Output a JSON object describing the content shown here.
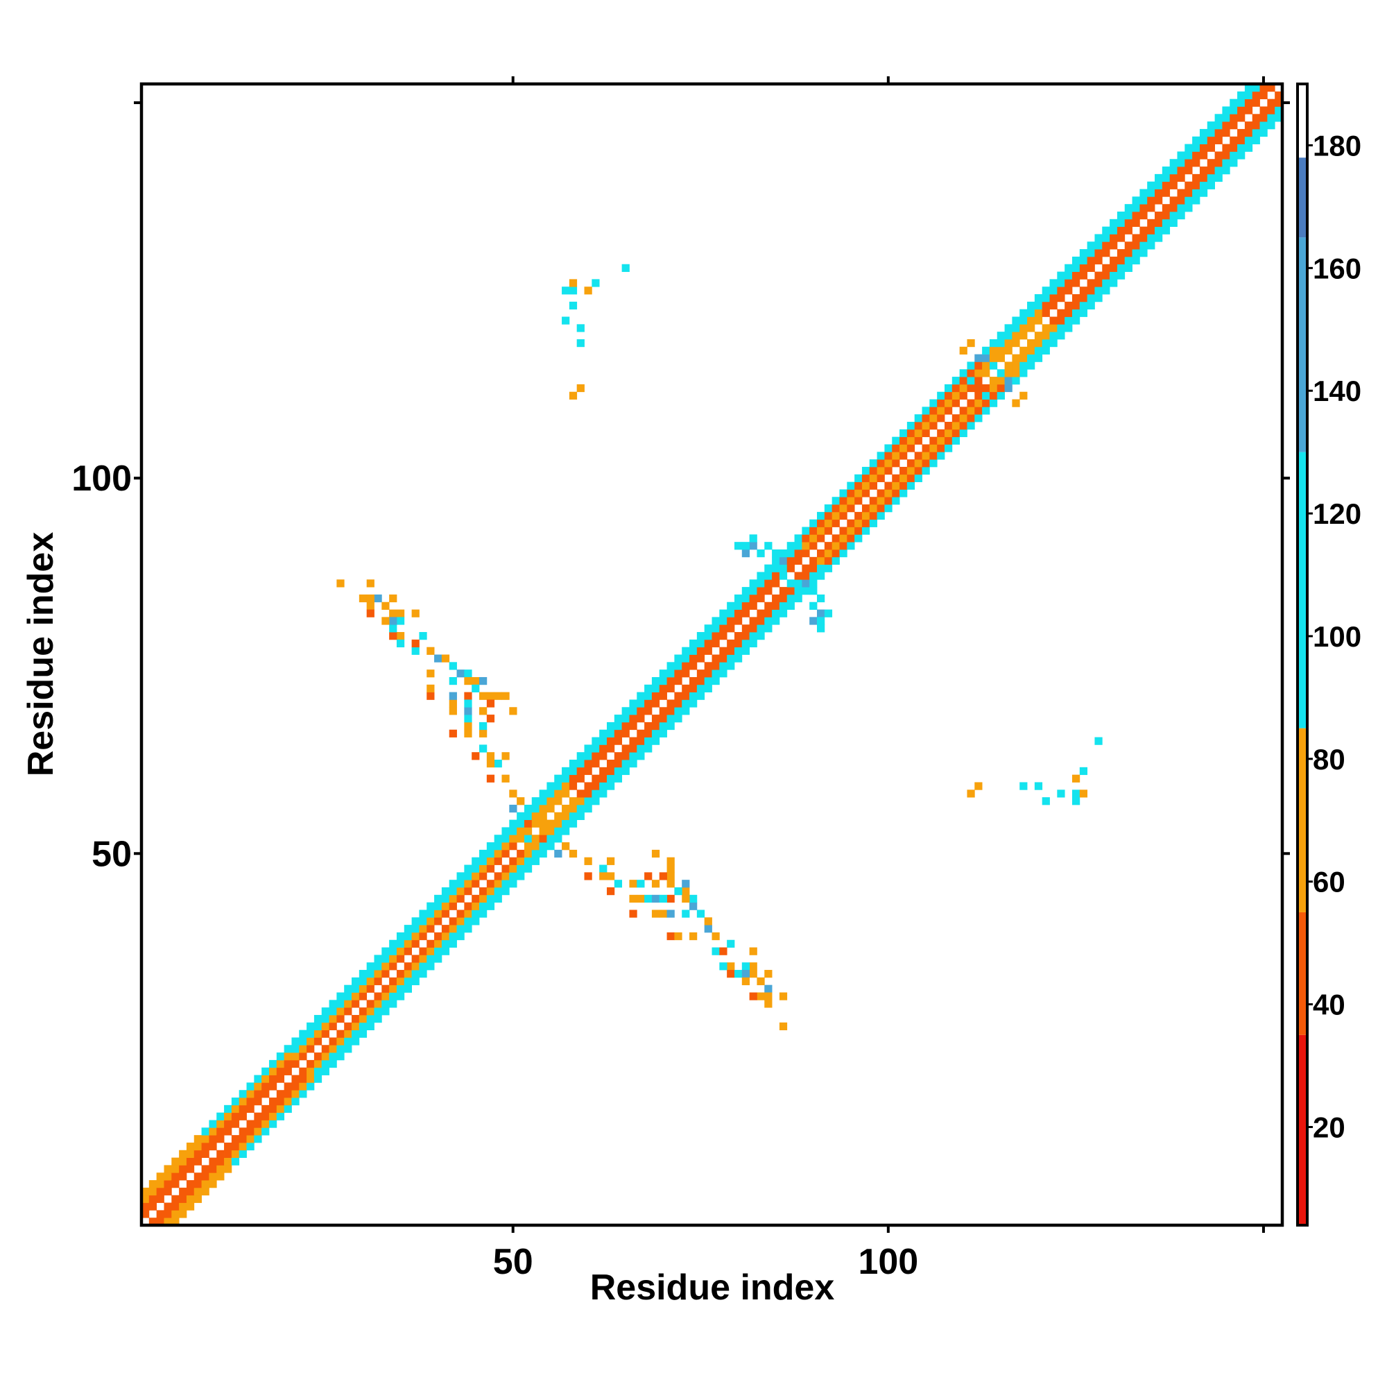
{
  "chart_data": {
    "type": "heatmap",
    "title": "",
    "xlabel": "Residue index",
    "ylabel": "Residue index",
    "xlim": [
      0.5,
      152.5
    ],
    "ylim": [
      0.5,
      152.5
    ],
    "x_ticks": [
      50,
      100,
      150
    ],
    "x_tick_labels": [
      "50",
      "100",
      ""
    ],
    "y_ticks": [
      50,
      100,
      150
    ],
    "y_tick_labels": [
      "50",
      "100",
      ""
    ],
    "grid": false,
    "colorbar": {
      "range": [
        4,
        190
      ],
      "ticks": [
        20,
        40,
        60,
        80,
        100,
        120,
        140,
        160,
        180
      ],
      "tick_labels": [
        "20",
        "40",
        "60",
        "80",
        "100",
        "120",
        "140",
        "160",
        "180"
      ],
      "bands": [
        {
          "from": 4,
          "to": 35,
          "color": "#e8150c"
        },
        {
          "from": 35,
          "to": 55,
          "color": "#f55a08"
        },
        {
          "from": 55,
          "to": 85,
          "color": "#f7a10c"
        },
        {
          "from": 85,
          "to": 130,
          "color": "#14e3ee"
        },
        {
          "from": 130,
          "to": 165,
          "color": "#4aa6d6"
        },
        {
          "from": 165,
          "to": 178,
          "color": "#4b7cbf"
        },
        {
          "from": 178,
          "to": 190,
          "color": "#ffffff"
        }
      ]
    },
    "band_rules": [
      {
        "from": 1,
        "to": 8,
        "d1": 35,
        "d2": 35,
        "d3": 60,
        "d4": 60
      },
      {
        "from": 9,
        "to": 20,
        "d1": 35,
        "d2": 35,
        "d3": 60,
        "d4": 100
      },
      {
        "from": 21,
        "to": 50,
        "d1": 35,
        "d2": 60,
        "d3": 100,
        "d4": 100
      },
      {
        "from": 51,
        "to": 57,
        "d1": 60,
        "d2": 60,
        "d3": 100,
        "d4": 100
      },
      {
        "from": 58,
        "to": 88,
        "d1": 35,
        "d2": 35,
        "d3": 100,
        "d4": 100
      },
      {
        "from": 89,
        "to": 112,
        "d1": 35,
        "d2": 60,
        "d3": 35,
        "d4": 100
      },
      {
        "from": 113,
        "to": 120,
        "d1": 60,
        "d2": 60,
        "d3": 100,
        "d4": 100
      },
      {
        "from": 121,
        "to": 152,
        "d1": 35,
        "d2": 35,
        "d3": 100,
        "d4": 100
      }
    ],
    "cells": [
      [
        27,
        86,
        75
      ],
      [
        31,
        86,
        75
      ],
      [
        30,
        84,
        75
      ],
      [
        32,
        84,
        140
      ],
      [
        33,
        83,
        75
      ],
      [
        31,
        83,
        75
      ],
      [
        31,
        82,
        35
      ],
      [
        34,
        82,
        100
      ],
      [
        35,
        82,
        75
      ],
      [
        37,
        82,
        75
      ],
      [
        35,
        79,
        75
      ],
      [
        38,
        79,
        100
      ],
      [
        35,
        78,
        75
      ],
      [
        39,
        77,
        100
      ],
      [
        40,
        76,
        140
      ],
      [
        41,
        76,
        75
      ],
      [
        42,
        75,
        100
      ],
      [
        43,
        74,
        140
      ],
      [
        44,
        74,
        100
      ],
      [
        42,
        73,
        75
      ],
      [
        44,
        73,
        75
      ],
      [
        45,
        73,
        75
      ],
      [
        46,
        73,
        140
      ],
      [
        45,
        72,
        100
      ],
      [
        46,
        71,
        75
      ],
      [
        47,
        71,
        75
      ],
      [
        48,
        71,
        75
      ],
      [
        49,
        71,
        75
      ],
      [
        44,
        71,
        35
      ],
      [
        47,
        70,
        35
      ],
      [
        46,
        69,
        75
      ],
      [
        50,
        69,
        75
      ],
      [
        47,
        68,
        35
      ],
      [
        60,
        49,
        75
      ],
      [
        63,
        49,
        75
      ],
      [
        62,
        48,
        100
      ],
      [
        60,
        47,
        35
      ],
      [
        62,
        47,
        75
      ],
      [
        63,
        47,
        75
      ],
      [
        64,
        46,
        100
      ],
      [
        66,
        46,
        75
      ],
      [
        67,
        46,
        100
      ],
      [
        63,
        45,
        35
      ],
      [
        66,
        44,
        75
      ],
      [
        67,
        44,
        75
      ],
      [
        68,
        44,
        100
      ],
      [
        69,
        44,
        140
      ],
      [
        70,
        44,
        100
      ],
      [
        66,
        42,
        35
      ],
      [
        69,
        42,
        75
      ],
      [
        70,
        42,
        75
      ],
      [
        71,
        42,
        140
      ],
      [
        73,
        42,
        100
      ],
      [
        71,
        39,
        35
      ],
      [
        72,
        39,
        75
      ],
      [
        74,
        39,
        75
      ],
      [
        77,
        39,
        75
      ],
      [
        77,
        37,
        100
      ],
      [
        78,
        37,
        35
      ],
      [
        78,
        35,
        100
      ],
      [
        81,
        35,
        100
      ],
      [
        79,
        34,
        35
      ],
      [
        80,
        34,
        100
      ],
      [
        81,
        34,
        140
      ],
      [
        82,
        34,
        75
      ],
      [
        84,
        34,
        75
      ],
      [
        81,
        33,
        75
      ],
      [
        84,
        31,
        75
      ],
      [
        65,
        128,
        100
      ],
      [
        61,
        126,
        100
      ],
      [
        58,
        125,
        100
      ],
      [
        60,
        125,
        75
      ],
      [
        58,
        123,
        100
      ],
      [
        59,
        120,
        100
      ],
      [
        59,
        112,
        75
      ],
      [
        118,
        59,
        100
      ],
      [
        125,
        58,
        100
      ],
      [
        126,
        58,
        75
      ],
      [
        111,
        58,
        75
      ],
      [
        125,
        57,
        100
      ],
      [
        121,
        57,
        100
      ],
      [
        80,
        91,
        100
      ],
      [
        82,
        91,
        140
      ],
      [
        84,
        91,
        100
      ],
      [
        81,
        90,
        140
      ],
      [
        83,
        90,
        140
      ],
      [
        85,
        90,
        100
      ],
      [
        86,
        89,
        100
      ],
      [
        86,
        87,
        100
      ],
      [
        88,
        86,
        100
      ],
      [
        89,
        86,
        140
      ],
      [
        90,
        85,
        100
      ],
      [
        91,
        84,
        100
      ],
      [
        90,
        83,
        100
      ],
      [
        91,
        82,
        140
      ],
      [
        92,
        82,
        100
      ],
      [
        91,
        81,
        100
      ],
      [
        110,
        117,
        75
      ],
      [
        113,
        117,
        100
      ],
      [
        112,
        116,
        140
      ],
      [
        114,
        115,
        100
      ],
      [
        115,
        114,
        100
      ],
      [
        117,
        114,
        75
      ],
      [
        116,
        113,
        140
      ],
      [
        111,
        113,
        100
      ],
      [
        112,
        112,
        35
      ],
      [
        118,
        111,
        75
      ],
      [
        52,
        56,
        75
      ],
      [
        53,
        55,
        100
      ],
      [
        54,
        54,
        75
      ],
      [
        55,
        53,
        140
      ],
      [
        56,
        52,
        100
      ],
      [
        52,
        52,
        100
      ],
      [
        55,
        51,
        100
      ],
      [
        57,
        51,
        75
      ],
      [
        58,
        50,
        75
      ],
      [
        56,
        50,
        140
      ],
      [
        53,
        55,
        75
      ],
      [
        52,
        54,
        35
      ]
    ]
  }
}
